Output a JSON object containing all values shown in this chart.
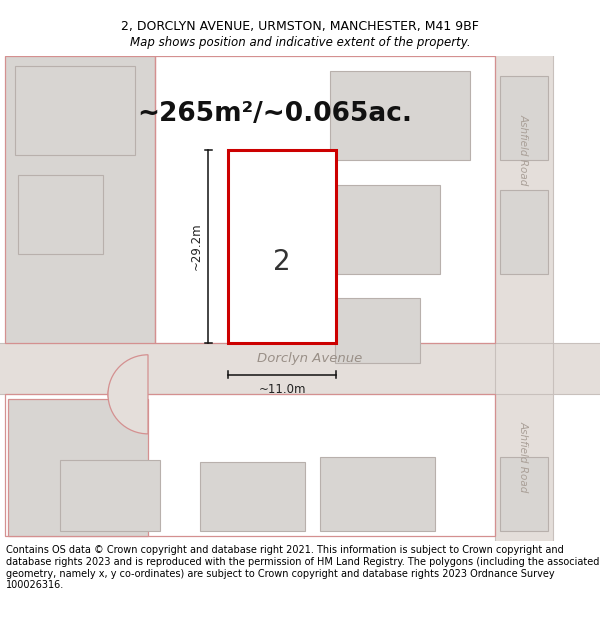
{
  "title_line1": "2, DORCLYN AVENUE, URMSTON, MANCHESTER, M41 9BF",
  "title_line2": "Map shows position and indicative extent of the property.",
  "area_text": "~265m²/~0.065ac.",
  "property_number": "2",
  "dim_height": "~29.2m",
  "dim_width": "~11.0m",
  "street_name": "Dorclyn Avenue",
  "road_label_top": "Ashfield Road",
  "road_label_bot": "Ashfield Road",
  "footer_text": "Contains OS data © Crown copyright and database right 2021. This information is subject to Crown copyright and database rights 2023 and is reproduced with the permission of HM Land Registry. The polygons (including the associated geometry, namely x, y co-ordinates) are subject to Crown copyright and database rights 2023 Ordnance Survey 100026316.",
  "map_bg": "#f2f0ee",
  "building_fill": "#d8d5d2",
  "building_outline_pink": "#d49090",
  "building_outline_gray": "#b8b0ac",
  "road_fill": "#e4deda",
  "road_line": "#c8c0bc",
  "red_outline": "#cc0000",
  "white": "#ffffff",
  "title_fontsize": 9,
  "area_fontsize": 19,
  "footer_fontsize": 7.0
}
